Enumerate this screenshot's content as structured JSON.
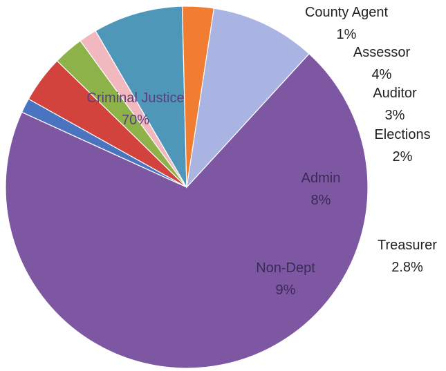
{
  "chart_data": {
    "type": "pie",
    "title": "",
    "slices": [
      {
        "label": "Criminal Justice",
        "value_label": "70%",
        "value": 70.0,
        "color": "#7e57a3"
      },
      {
        "label": "County Agent",
        "value_label": "1%",
        "value": 1.3,
        "color": "#4a74c0"
      },
      {
        "label": "Assessor",
        "value_label": "4%",
        "value": 4.2,
        "color": "#d2433e"
      },
      {
        "label": "Auditor",
        "value_label": "3%",
        "value": 2.7,
        "color": "#8db24a"
      },
      {
        "label": "Elections",
        "value_label": "2%",
        "value": 1.6,
        "color": "#f2b8c0"
      },
      {
        "label": "Admin",
        "value_label": "8%",
        "value": 8.0,
        "color": "#4f97b8"
      },
      {
        "label": "Treasurer",
        "value_label": "2.8%",
        "value": 2.8,
        "color": "#f07d32"
      },
      {
        "label": "Non-Dept",
        "value_label": "9%",
        "value": 9.4,
        "color": "#aab4e2"
      }
    ]
  }
}
